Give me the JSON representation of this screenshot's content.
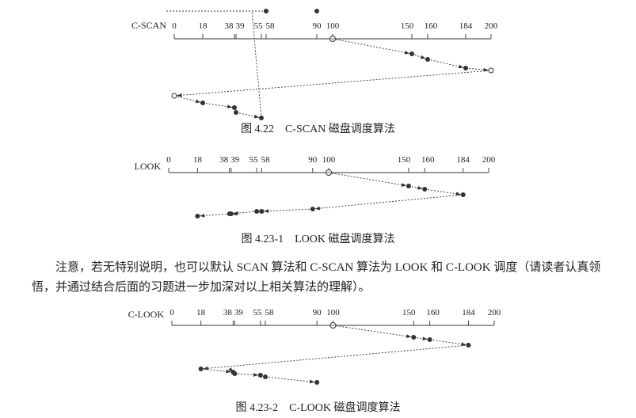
{
  "diagrams": [
    {
      "id": "cscan",
      "label": "C-SCAN",
      "caption": "图 4.22　C-SCAN 磁盘调度算法",
      "ticks": [
        0,
        18,
        38,
        39,
        55,
        58,
        90,
        100,
        150,
        160,
        184,
        200
      ],
      "start": 100,
      "path": [
        {
          "track": 100,
          "kind": "start"
        },
        {
          "track": 150,
          "kind": "dot"
        },
        {
          "track": 160,
          "kind": "dot"
        },
        {
          "track": 184,
          "kind": "dot"
        },
        {
          "track": 200,
          "kind": "open"
        },
        {
          "track": 0,
          "kind": "open"
        },
        {
          "track": 18,
          "kind": "dot"
        },
        {
          "track": 38,
          "kind": "dot"
        },
        {
          "track": 39,
          "kind": "dot"
        },
        {
          "track": 55,
          "kind": "dot"
        },
        {
          "track": 58,
          "kind": "dot"
        },
        {
          "track": 90,
          "kind": "dot"
        }
      ]
    },
    {
      "id": "look",
      "label": "LOOK",
      "caption": "图 4.23-1　LOOK 磁盘调度算法",
      "ticks": [
        0,
        18,
        38,
        39,
        55,
        58,
        90,
        100,
        150,
        160,
        184,
        200
      ],
      "start": 100,
      "path": [
        {
          "track": 100,
          "kind": "start"
        },
        {
          "track": 150,
          "kind": "dot"
        },
        {
          "track": 160,
          "kind": "dot"
        },
        {
          "track": 184,
          "kind": "dot"
        },
        {
          "track": 90,
          "kind": "dot"
        },
        {
          "track": 58,
          "kind": "dot"
        },
        {
          "track": 55,
          "kind": "dot"
        },
        {
          "track": 39,
          "kind": "dot"
        },
        {
          "track": 38,
          "kind": "dot"
        },
        {
          "track": 18,
          "kind": "dot"
        }
      ]
    },
    {
      "id": "clook",
      "label": "C-LOOK",
      "caption": "图 4.23-2　C-LOOK 磁盘调度算法",
      "ticks": [
        0,
        18,
        38,
        39,
        55,
        58,
        90,
        100,
        150,
        160,
        184,
        200
      ],
      "start": 100,
      "path": [
        {
          "track": 100,
          "kind": "start"
        },
        {
          "track": 150,
          "kind": "dot"
        },
        {
          "track": 160,
          "kind": "dot"
        },
        {
          "track": 184,
          "kind": "dot"
        },
        {
          "track": 18,
          "kind": "dot"
        },
        {
          "track": 38,
          "kind": "dot"
        },
        {
          "track": 39,
          "kind": "dot"
        },
        {
          "track": 55,
          "kind": "dot"
        },
        {
          "track": 58,
          "kind": "dot"
        },
        {
          "track": 90,
          "kind": "dot"
        }
      ]
    }
  ],
  "note": {
    "text": "注意，若无特别说明，也可以默认 SCAN 算法和 C-SCAN 算法为 LOOK 和 C-LOOK 调度（请读者认真领悟，并通过结合后面的习题进一步加深对以上相关算法的理解）。"
  }
}
